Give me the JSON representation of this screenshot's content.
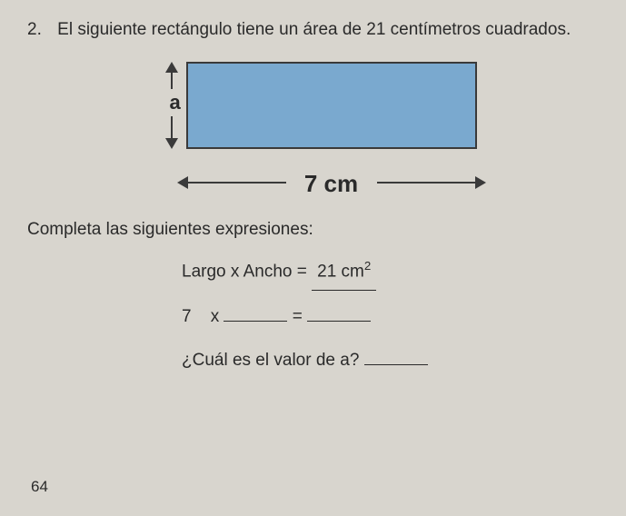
{
  "question": {
    "number": "2.",
    "text": "El siguiente rectángulo tiene un área de 21 centímetros cuadrados."
  },
  "diagram": {
    "side_label": "a",
    "width_label": "7 cm",
    "rect_fill": "#7aa9cf",
    "rect_border": "#3a3a3a"
  },
  "instruction": "Completa las siguientes expresiones:",
  "expressions": {
    "row1_lhs": "Largo x Ancho =",
    "row1_value": "21 cm",
    "row1_exp": "2",
    "row2_a": "7",
    "row2_op": "x",
    "row2_blank": "",
    "row2_eq": "=",
    "row2_result": "",
    "row3_q": "¿Cuál es el valor de a?",
    "row3_blank": ""
  },
  "page_number": "64"
}
